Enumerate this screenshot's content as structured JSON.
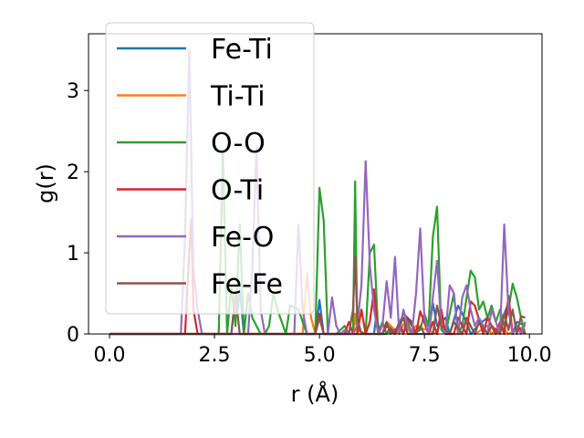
{
  "chart_data": {
    "type": "line",
    "title": "",
    "xlabel": "r (Å)",
    "ylabel": "g(r)",
    "xlim": [
      -0.5,
      10.3
    ],
    "ylim": [
      0,
      3.7
    ],
    "xticks": [
      0.0,
      2.5,
      5.0,
      7.5,
      10.0
    ],
    "xtick_labels": [
      "0.0",
      "2.5",
      "5.0",
      "7.5",
      "10.0"
    ],
    "yticks": [
      0,
      1,
      2,
      3
    ],
    "ytick_labels": [
      "0",
      "1",
      "2",
      "3"
    ],
    "grid": false,
    "legend_position": "top-left",
    "series": [
      {
        "name": "Fe-Ti",
        "color": "#1f77b4",
        "x": [
          0.0,
          2.9,
          3.0,
          3.05,
          3.1,
          3.2,
          4.9,
          5.0,
          5.1,
          6.3,
          6.35,
          6.45,
          6.6,
          6.7,
          6.8,
          7.0,
          7.2,
          7.3,
          7.6,
          7.7,
          7.8,
          8.0,
          8.1,
          8.3,
          8.5,
          8.6,
          8.8,
          9.0,
          9.2,
          9.4,
          9.5,
          9.6,
          9.7,
          9.9
        ],
        "y": [
          0.0,
          0.0,
          0.5,
          0.3,
          0.55,
          0.0,
          0.0,
          0.42,
          0.0,
          0.0,
          0.22,
          0.0,
          0.0,
          0.1,
          0.0,
          0.25,
          0.15,
          0.0,
          0.0,
          0.38,
          0.1,
          0.2,
          0.0,
          0.35,
          0.15,
          0.0,
          0.12,
          0.2,
          0.0,
          0.25,
          0.38,
          0.0,
          0.15,
          0.1
        ]
      },
      {
        "name": "Ti-Ti",
        "color": "#ff7f0e",
        "x": [
          0.0,
          4.6,
          4.7,
          4.8,
          4.9,
          5.0,
          5.8,
          5.85,
          5.9,
          6.5,
          6.6,
          6.9,
          7.0,
          7.2,
          7.3,
          7.8,
          7.9,
          8.0,
          8.4,
          8.5,
          8.7,
          9.0,
          9.1,
          9.3,
          9.5,
          9.9
        ],
        "y": [
          0.0,
          0.0,
          0.75,
          0.2,
          0.0,
          0.0,
          0.0,
          0.25,
          0.0,
          0.0,
          0.15,
          0.0,
          0.12,
          0.0,
          0.1,
          0.0,
          0.22,
          0.0,
          0.0,
          0.18,
          0.0,
          0.1,
          0.0,
          0.12,
          0.0,
          0.1
        ]
      },
      {
        "name": "O-O",
        "color": "#2ca02c",
        "x": [
          0.0,
          2.6,
          2.7,
          2.8,
          2.9,
          3.0,
          3.1,
          3.2,
          3.3,
          3.4,
          3.6,
          3.7,
          3.8,
          3.9,
          4.0,
          4.2,
          4.3,
          4.5,
          4.7,
          4.9,
          5.0,
          5.1,
          5.2,
          5.4,
          5.6,
          5.7,
          5.8,
          5.85,
          5.9,
          6.1,
          6.2,
          6.3,
          6.4,
          6.5,
          6.6,
          6.7,
          6.8,
          6.9,
          7.0,
          7.1,
          7.2,
          7.4,
          7.5,
          7.6,
          7.7,
          7.8,
          7.9,
          8.0,
          8.2,
          8.3,
          8.4,
          8.6,
          8.7,
          8.8,
          8.9,
          9.0,
          9.1,
          9.2,
          9.3,
          9.4,
          9.5,
          9.6,
          9.7,
          9.8,
          9.9
        ],
        "y": [
          0.0,
          0.0,
          2.25,
          0.0,
          0.6,
          0.1,
          1.35,
          0.0,
          0.5,
          0.2,
          0.0,
          0.0,
          0.1,
          0.5,
          0.3,
          0.0,
          0.35,
          0.3,
          0.0,
          0.0,
          1.8,
          1.4,
          0.0,
          0.0,
          0.1,
          0.0,
          0.0,
          1.88,
          0.05,
          0.0,
          1.0,
          1.1,
          0.0,
          0.15,
          0.0,
          0.05,
          0.0,
          0.1,
          0.0,
          0.15,
          0.0,
          0.05,
          0.25,
          0.1,
          1.2,
          1.57,
          0.05,
          0.0,
          0.5,
          0.0,
          0.1,
          0.78,
          0.7,
          0.3,
          0.4,
          0.2,
          0.35,
          0.15,
          0.3,
          0.1,
          0.3,
          0.62,
          0.45,
          0.2,
          0.0
        ]
      },
      {
        "name": "O-Ti",
        "color": "#d62728",
        "x": [
          0.0,
          1.8,
          1.9,
          1.95,
          2.0,
          2.1,
          4.9,
          5.0,
          5.1,
          5.6,
          5.7,
          5.8,
          5.9,
          6.0,
          6.1,
          6.2,
          6.3,
          6.4,
          6.5,
          6.6,
          6.8,
          6.9,
          7.0,
          7.1,
          7.3,
          7.4,
          7.6,
          7.7,
          7.8,
          7.9,
          8.0,
          8.2,
          8.3,
          8.5,
          8.6,
          8.7,
          8.9,
          9.0,
          9.2,
          9.3,
          9.4,
          9.5,
          9.6,
          9.7,
          9.9
        ],
        "y": [
          0.0,
          0.0,
          1.0,
          1.42,
          0.3,
          0.0,
          0.0,
          0.25,
          0.0,
          0.0,
          0.15,
          0.0,
          0.0,
          0.3,
          0.0,
          0.15,
          0.55,
          0.0,
          0.0,
          0.1,
          0.0,
          0.15,
          0.0,
          0.2,
          0.0,
          0.28,
          0.0,
          0.15,
          0.0,
          0.3,
          0.0,
          0.0,
          0.2,
          0.0,
          0.4,
          0.35,
          0.0,
          0.2,
          0.0,
          0.15,
          0.0,
          0.47,
          0.0,
          0.1,
          0.0
        ]
      },
      {
        "name": "Fe-O",
        "color": "#9467bd",
        "x": [
          0.0,
          1.7,
          1.8,
          1.9,
          2.0,
          2.1,
          2.2,
          3.3,
          3.4,
          3.5,
          3.6,
          3.7,
          4.4,
          4.5,
          4.6,
          4.7,
          5.2,
          5.3,
          5.4,
          5.5,
          5.6,
          5.7,
          5.8,
          5.9,
          6.0,
          6.1,
          6.2,
          6.3,
          6.4,
          6.5,
          6.6,
          6.7,
          6.8,
          6.9,
          7.0,
          7.1,
          7.2,
          7.3,
          7.4,
          7.5,
          7.6,
          7.8,
          7.9,
          8.0,
          8.1,
          8.2,
          8.3,
          8.4,
          8.5,
          8.6,
          8.7,
          8.8,
          9.0,
          9.1,
          9.2,
          9.3,
          9.4,
          9.5,
          9.6,
          9.7,
          9.8,
          9.9
        ],
        "y": [
          0.0,
          0.0,
          1.2,
          3.5,
          0.8,
          0.3,
          0.0,
          0.0,
          0.8,
          2.3,
          0.3,
          0.0,
          0.0,
          1.35,
          0.3,
          0.0,
          0.0,
          0.45,
          0.1,
          0.0,
          0.05,
          0.0,
          0.0,
          0.1,
          0.6,
          2.13,
          0.85,
          0.3,
          0.0,
          0.1,
          0.65,
          0.2,
          0.95,
          0.0,
          0.3,
          0.1,
          0.0,
          0.5,
          1.3,
          0.2,
          0.0,
          0.9,
          0.1,
          0.0,
          0.6,
          0.5,
          0.0,
          0.45,
          0.6,
          0.3,
          0.1,
          0.2,
          0.0,
          0.3,
          0.15,
          0.0,
          1.35,
          0.3,
          0.0,
          0.1,
          0.0,
          0.15
        ]
      },
      {
        "name": "Fe-Fe",
        "color": "#8c564b",
        "x": [
          0.0,
          2.9,
          3.0,
          3.1,
          4.9,
          5.0,
          5.1,
          5.7,
          5.8,
          5.85,
          5.9,
          6.0,
          6.5,
          6.6,
          6.7,
          6.9,
          7.0,
          7.1,
          7.3,
          7.4,
          7.5,
          7.7,
          7.8,
          7.9,
          8.1,
          8.2,
          8.4,
          8.5,
          8.7,
          8.8,
          9.0,
          9.1,
          9.3,
          9.4,
          9.5,
          9.6,
          9.7,
          9.8,
          9.9
        ],
        "y": [
          0.0,
          0.0,
          0.5,
          0.0,
          0.0,
          0.2,
          0.0,
          0.0,
          0.3,
          0.95,
          0.2,
          0.0,
          0.0,
          0.15,
          0.0,
          0.1,
          0.2,
          0.0,
          0.0,
          0.1,
          0.0,
          0.0,
          0.35,
          0.1,
          0.0,
          0.15,
          0.0,
          0.2,
          0.0,
          0.15,
          0.0,
          0.1,
          0.0,
          0.25,
          0.05,
          0.3,
          0.0,
          0.22,
          0.2
        ]
      }
    ]
  }
}
